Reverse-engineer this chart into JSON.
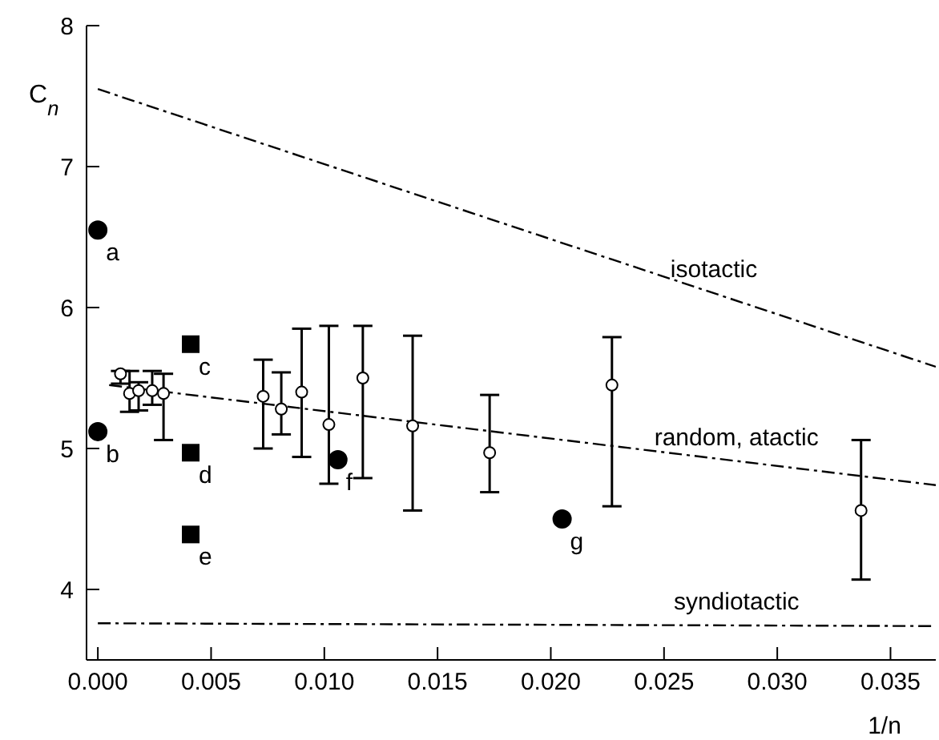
{
  "chart_data": {
    "type": "scatter",
    "xlabel": "1/n",
    "ylabel": "C$_{n}$",
    "xlim": [
      -0.0005,
      0.037
    ],
    "xticks": [
      {
        "value": 0,
        "label": "0.000"
      },
      {
        "value": 0.005,
        "label": "0.005"
      },
      {
        "value": 0.01,
        "label": "0.010"
      },
      {
        "value": 0.015,
        "label": "0.015"
      },
      {
        "value": 0.02,
        "label": "0.020"
      },
      {
        "value": 0.025,
        "label": "0.025"
      },
      {
        "value": 0.03,
        "label": "0.030"
      },
      {
        "value": 0.035,
        "label": "0.035"
      }
    ],
    "ylim": [
      3.5,
      8
    ],
    "yticks": [
      4,
      5,
      6,
      7,
      8
    ],
    "grid": false,
    "legend": false,
    "series": [
      {
        "type": "line",
        "color": "#000000",
        "line_style": "dashed",
        "marker": "none",
        "x": [
          0,
          0.037
        ],
        "values": [
          7.55,
          5.58
        ]
      },
      {
        "type": "line",
        "color": "#000000",
        "line_style": "dashed",
        "marker": "none",
        "x": [
          0.0005,
          0.037
        ],
        "values": [
          5.45,
          4.74
        ]
      },
      {
        "type": "line",
        "color": "#000000",
        "line_style": "dashed",
        "marker": "none",
        "x": [
          0,
          0.037
        ],
        "values": [
          3.76,
          3.74
        ]
      },
      {
        "color": "#ffffff",
        "marker": "circle",
        "x": [
          0.001,
          0.0014,
          0.0018,
          0.0024,
          0.0029,
          0.0073,
          0.0081,
          0.009,
          0.0102,
          0.0117,
          0.0139,
          0.0173,
          0.0227,
          0.0337
        ],
        "values": [
          5.53,
          5.39,
          5.41,
          5.41,
          5.39,
          5.37,
          5.28,
          5.4,
          5.17,
          5.5,
          5.16,
          4.97,
          5.45,
          4.56
        ],
        "errors": [
          [
            5.46,
            5.55
          ],
          [
            5.26,
            5.55
          ],
          [
            5.27,
            5.47
          ],
          [
            5.31,
            5.55
          ],
          [
            5.06,
            5.53
          ],
          [
            5.0,
            5.63
          ],
          [
            5.1,
            5.54
          ],
          [
            4.94,
            5.85
          ],
          [
            4.75,
            5.87
          ],
          [
            4.79,
            5.87
          ],
          [
            4.56,
            5.8
          ],
          [
            4.69,
            5.38
          ],
          [
            4.59,
            5.79
          ],
          [
            4.07,
            5.06
          ]
        ]
      },
      {
        "color": "#000000",
        "marker": "circle",
        "x": [
          0,
          0,
          0.0106,
          0.0205
        ],
        "values": [
          6.55,
          5.12,
          4.92,
          4.5
        ]
      },
      {
        "color": "#000000",
        "marker": "square",
        "x": [
          0.0041,
          0.0041,
          0.0041
        ],
        "values": [
          5.74,
          4.97,
          4.39
        ]
      }
    ],
    "annotations": [
      {
        "text": "a",
        "x": 0,
        "y": 6.55
      },
      {
        "text": "b",
        "x": 0,
        "y": 5.12
      },
      {
        "text": "c",
        "x": 0.0041,
        "y": 5.74
      },
      {
        "text": "d",
        "x": 0.0041,
        "y": 4.97
      },
      {
        "text": "e",
        "x": 0.0041,
        "y": 4.39
      },
      {
        "text": "f",
        "x": 0.0106,
        "y": 4.92
      },
      {
        "text": "g",
        "x": 0.0205,
        "y": 4.5
      },
      {
        "text": "isotactic",
        "x": 0.0272,
        "y": 6.1
      },
      {
        "text": "random, atactic",
        "x": 0.0282,
        "y": 4.91
      },
      {
        "text": "syndiotactic",
        "x": 0.0282,
        "y": 3.745
      }
    ]
  }
}
